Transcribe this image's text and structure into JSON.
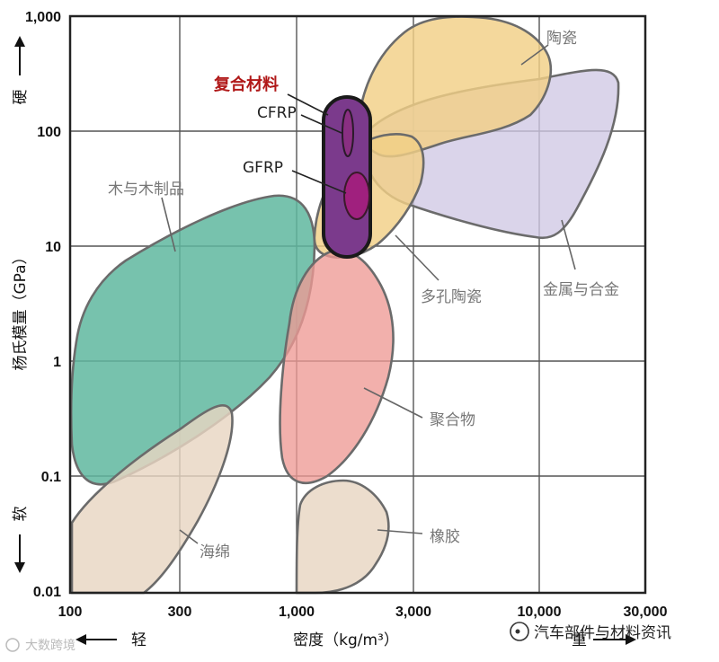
{
  "chart_data": {
    "type": "scatter",
    "x_scale": "log",
    "y_scale": "log",
    "xlim": [
      100,
      30000
    ],
    "ylim": [
      0.01,
      1000
    ],
    "grid": true,
    "x_ticks": [
      "100",
      "300",
      "1,000",
      "3,000",
      "10,000",
      "30,000"
    ],
    "y_ticks": [
      "1,000",
      "100",
      "10",
      "1",
      "0.1",
      "0.01"
    ],
    "xlabel": "密度（kg/m³）",
    "ylabel": "杨氏模量（GPa）",
    "y_high_label": "硬",
    "y_low_label": "软",
    "x_low_label": "轻",
    "x_high_label": "重",
    "highlight_title": "复合材料",
    "regions": [
      {
        "name": "陶瓷",
        "color": "#f2cf86",
        "density_range": [
          1200,
          8000
        ],
        "modulus_range": [
          30,
          900
        ]
      },
      {
        "name": "金属与合金",
        "color": "#cfc8e4",
        "density_range": [
          1600,
          22000
        ],
        "modulus_range": [
          12,
          400
        ]
      },
      {
        "name": "多孔陶瓷",
        "color": "#f2cf86",
        "density_range": [
          1050,
          4200
        ],
        "modulus_range": [
          8,
          130
        ]
      },
      {
        "name": "木与木制品",
        "color": "#5fb79f",
        "density_range": [
          100,
          1050
        ],
        "modulus_range": [
          0.07,
          27
        ]
      },
      {
        "name": "聚合物",
        "color": "#ee9a95",
        "density_range": [
          850,
          2300
        ],
        "modulus_range": [
          0.09,
          9
        ]
      },
      {
        "name": "海绵",
        "color": "#e8d5c2",
        "density_range": [
          100,
          480
        ],
        "modulus_range": [
          0.01,
          0.45
        ]
      },
      {
        "name": "橡胶",
        "color": "#e8d5c2",
        "density_range": [
          920,
          2800
        ],
        "modulus_range": [
          0.01,
          0.1
        ]
      },
      {
        "name": "复合材料",
        "color": "#7b3a8c",
        "density_range": [
          1250,
          2100
        ],
        "modulus_range": [
          8,
          200
        ]
      },
      {
        "name": "CFRP",
        "color": "#8a2f82",
        "density_range": [
          1450,
          1800
        ],
        "modulus_range": [
          50,
          180
        ]
      },
      {
        "name": "GFRP",
        "color": "#a0207e",
        "density_range": [
          1550,
          2050
        ],
        "modulus_range": [
          15,
          45
        ]
      }
    ]
  },
  "watermark_left": "大数跨境",
  "watermark_right": "汽车部件与材料资讯",
  "colors": {
    "grid": "#555555",
    "frame": "#222222",
    "title": "#b01818"
  }
}
